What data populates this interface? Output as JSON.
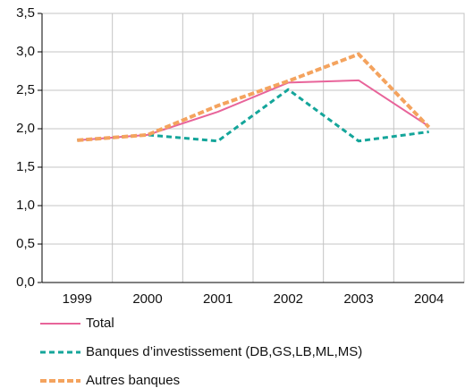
{
  "chart_data": {
    "type": "line",
    "categories": [
      "1999",
      "2000",
      "2001",
      "2002",
      "2003",
      "2004"
    ],
    "series": [
      {
        "name": "Total",
        "color": "#e8649a",
        "dash": false,
        "width": 2,
        "values": [
          1.85,
          1.92,
          2.22,
          2.6,
          2.63,
          2.03
        ]
      },
      {
        "name": "Banques d’investissement (DB,GS,LB,ML,MS)",
        "color": "#14a59a",
        "dash": true,
        "width": 3,
        "values": [
          1.85,
          1.92,
          1.84,
          2.51,
          1.84,
          1.96
        ]
      },
      {
        "name": "Autres banques",
        "color": "#f4a35e",
        "dash": true,
        "width": 4,
        "values": [
          1.85,
          1.92,
          2.3,
          2.62,
          2.97,
          2.02
        ]
      }
    ],
    "ylim": [
      0,
      3.5
    ],
    "yticks": [
      {
        "value": 0,
        "label": "0,0"
      },
      {
        "value": 0.5,
        "label": "0,5"
      },
      {
        "value": 1,
        "label": "1,0"
      },
      {
        "value": 1.5,
        "label": "1,5"
      },
      {
        "value": 2,
        "label": "2,0"
      },
      {
        "value": 2.5,
        "label": "2,5"
      },
      {
        "value": 3,
        "label": "3,0"
      },
      {
        "value": 3.5,
        "label": "3,5"
      }
    ],
    "grid": true
  }
}
